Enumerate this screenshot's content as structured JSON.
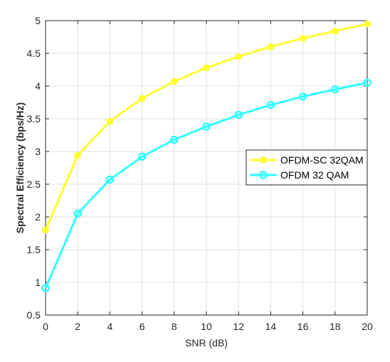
{
  "chart_data": {
    "type": "line",
    "xlabel": "SNR (dB)",
    "ylabel": "Spectral Efficiency (bps/Hz)",
    "xlim": [
      0,
      20
    ],
    "ylim": [
      0.5,
      5
    ],
    "xticks": [
      "0",
      "2",
      "4",
      "6",
      "8",
      "10",
      "12",
      "14",
      "16",
      "18",
      "20"
    ],
    "yticks": [
      "0.5",
      "1",
      "1.5",
      "2",
      "2.5",
      "3",
      "3.5",
      "4",
      "4.5",
      "5"
    ],
    "grid": true,
    "legend_position": "center-right",
    "x": [
      0,
      2,
      4,
      6,
      8,
      10,
      12,
      14,
      16,
      18,
      20
    ],
    "series": [
      {
        "name": "OFDM-SC 32QAM",
        "color": "#ffff33",
        "marker": "filled-circle",
        "values": [
          1.8,
          2.94,
          3.46,
          3.81,
          4.07,
          4.28,
          4.45,
          4.6,
          4.73,
          4.84,
          4.95
        ]
      },
      {
        "name": "OFDM 32 QAM",
        "color": "#33ffff",
        "marker": "open-circle",
        "values": [
          0.91,
          2.05,
          2.57,
          2.92,
          3.18,
          3.38,
          3.56,
          3.71,
          3.84,
          3.95,
          4.05
        ]
      }
    ]
  }
}
